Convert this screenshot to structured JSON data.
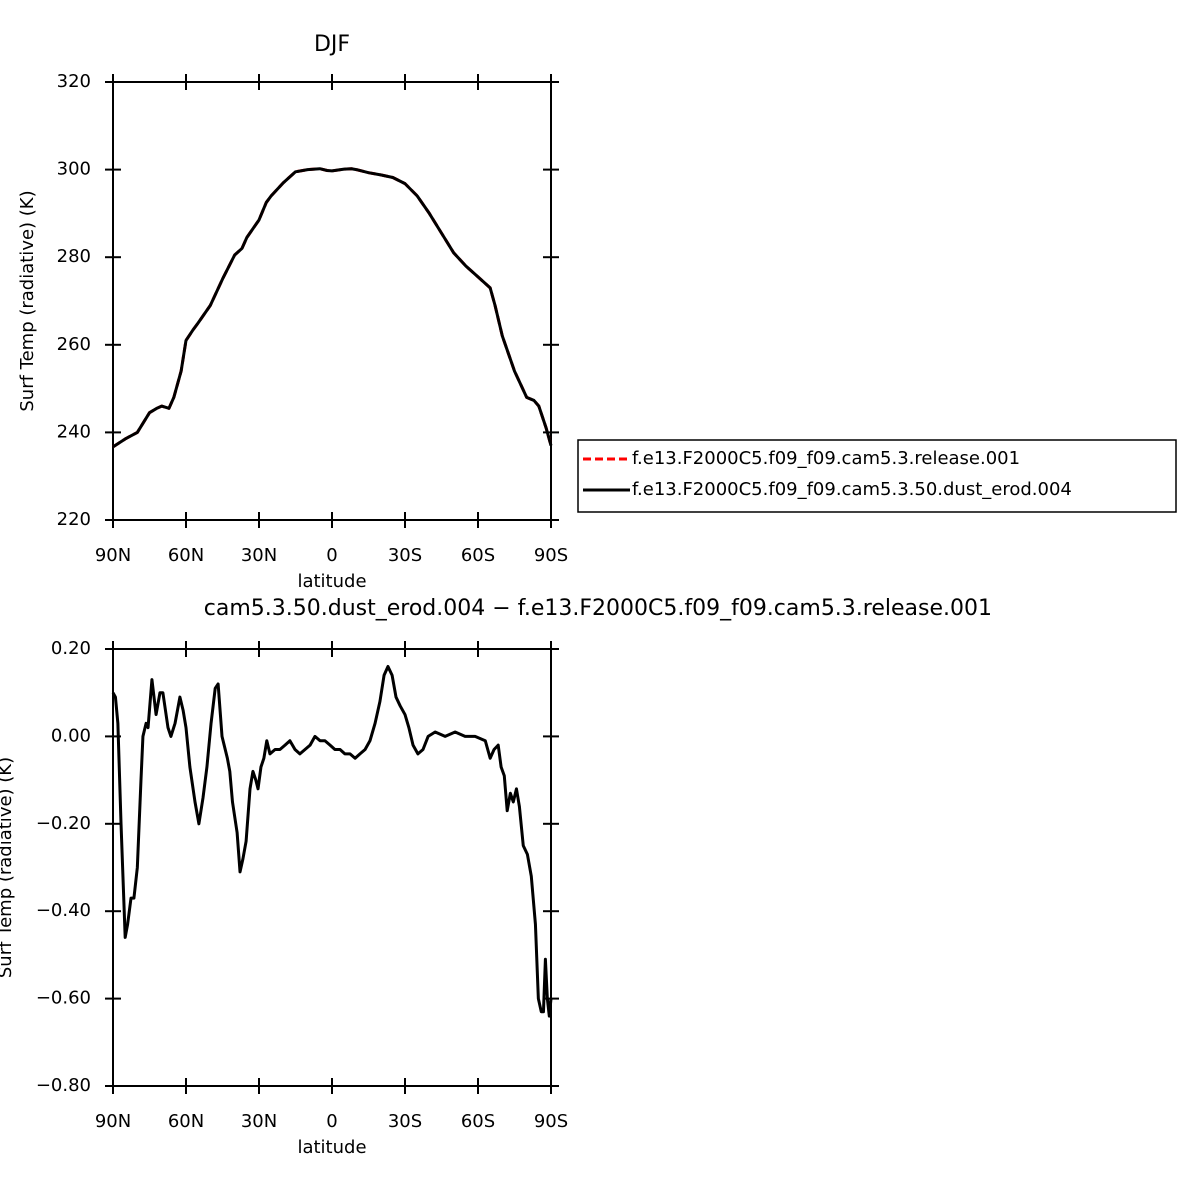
{
  "chart_data": [
    {
      "type": "line",
      "title": "DJF",
      "xlabel": "latitude",
      "ylabel": "Surf Temp (radiative) (K)",
      "x": [
        90,
        85,
        80,
        75,
        72,
        70,
        67,
        65,
        62,
        60,
        57,
        55,
        50,
        45,
        40,
        37,
        35,
        30,
        27,
        25,
        20,
        15,
        10,
        5,
        2,
        0,
        -5,
        -8,
        -10,
        -15,
        -20,
        -25,
        -30,
        -35,
        -40,
        -45,
        -50,
        -55,
        -60,
        -65,
        -67,
        -70,
        -75,
        -80,
        -83,
        -85,
        -88,
        -90
      ],
      "series": [
        {
          "name": "f.e13.F2000C5.f09_f09.cam5.3.release.001",
          "color": "#ff0000",
          "line_style": "dashed",
          "values": [
            236.7,
            238.5,
            240,
            244.5,
            245.5,
            246,
            245.5,
            248,
            254,
            261,
            263.5,
            265,
            269,
            275,
            280.5,
            282,
            284.5,
            288.5,
            292.5,
            294,
            297,
            299.5,
            300,
            300.2,
            299.8,
            299.7,
            300.1,
            300.2,
            300,
            299.3,
            298.8,
            298.2,
            296.8,
            294,
            290,
            285.5,
            281,
            278,
            275.5,
            273,
            269,
            262,
            254,
            248,
            247.3,
            246,
            241,
            237
          ]
        },
        {
          "name": "f.e13.F2000C5.f09_f09.cam5.3.50.dust_erod.004",
          "color": "#000000",
          "line_style": "solid",
          "values": [
            236.7,
            238.5,
            240,
            244.5,
            245.5,
            246,
            245.5,
            248,
            254,
            261,
            263.5,
            265,
            269,
            275,
            280.5,
            282,
            284.5,
            288.5,
            292.5,
            294,
            297,
            299.5,
            300,
            300.2,
            299.8,
            299.7,
            300.1,
            300.2,
            300,
            299.3,
            298.8,
            298.2,
            296.8,
            294,
            290,
            285.5,
            281,
            278,
            275.5,
            273,
            269,
            262,
            254,
            248,
            247.3,
            246,
            241,
            237
          ]
        }
      ],
      "xlim": [
        90,
        -90
      ],
      "xticks": [
        {
          "value": 90,
          "label": "90N"
        },
        {
          "value": 60,
          "label": "60N"
        },
        {
          "value": 30,
          "label": "30N"
        },
        0,
        {
          "value": -30,
          "label": "30S"
        },
        {
          "value": -60,
          "label": "60S"
        },
        {
          "value": -90,
          "label": "90S"
        }
      ],
      "ylim": [
        220,
        320
      ],
      "yticks": [
        220,
        240,
        260,
        280,
        300,
        320
      ],
      "legend": "right"
    },
    {
      "type": "line",
      "title": "cam5.3.50.dust_erod.004 − f.e13.F2000C5.f09_f09.cam5.3.release.001",
      "xlabel": "latitude",
      "ylabel": "Surf Temp (radiative) (K)",
      "x": [
        90,
        89,
        88,
        86.7,
        85,
        84,
        82.6,
        81.4,
        80,
        78.5,
        77.7,
        76.4,
        75.6,
        74,
        72.3,
        70.7,
        69.5,
        67.4,
        66.2,
        64.5,
        62.5,
        61.2,
        60,
        58.4,
        56.3,
        54.7,
        53,
        51.4,
        49.7,
        48,
        46.8,
        45.2,
        43,
        42,
        40.9,
        39,
        37.8,
        36.6,
        35.3,
        33.7,
        32.5,
        31.3,
        30.4,
        29.2,
        28,
        26.8,
        25.5,
        23.4,
        21.4,
        19.3,
        17.3,
        15.2,
        13.2,
        11.1,
        9,
        7,
        4.9,
        2.9,
        0.8,
        -1.2,
        -3.3,
        -5.3,
        -7.4,
        -9.5,
        -11.5,
        -13.6,
        -15.6,
        -17.7,
        -19.7,
        -21.4,
        -23,
        -24.7,
        -26.3,
        -28,
        -30,
        -31.6,
        -33.3,
        -35.3,
        -37.4,
        -39.5,
        -42.4,
        -46.5,
        -50.6,
        -54.7,
        -58.8,
        -63,
        -65,
        -66.6,
        -68.3,
        -69.5,
        -70.8,
        -72,
        -73.3,
        -74.5,
        -75.8,
        -77,
        -78.6,
        -80.3,
        -81.9,
        -83.6,
        -84.8,
        -86,
        -86.9,
        -87.7,
        -88.5,
        -89.3,
        -90
      ],
      "series": [
        {
          "color": "#000000",
          "line_style": "solid",
          "values": [
            0.1,
            0.09,
            0.03,
            -0.2,
            -0.46,
            -0.43,
            -0.37,
            -0.37,
            -0.3,
            -0.1,
            0.0,
            0.03,
            0.02,
            0.13,
            0.05,
            0.1,
            0.1,
            0.02,
            0.0,
            0.03,
            0.09,
            0.06,
            0.02,
            -0.07,
            -0.15,
            -0.2,
            -0.14,
            -0.07,
            0.03,
            0.11,
            0.12,
            0.0,
            -0.05,
            -0.08,
            -0.15,
            -0.22,
            -0.31,
            -0.28,
            -0.24,
            -0.12,
            -0.08,
            -0.1,
            -0.12,
            -0.07,
            -0.05,
            -0.01,
            -0.04,
            -0.03,
            -0.03,
            -0.02,
            -0.01,
            -0.03,
            -0.04,
            -0.03,
            -0.02,
            0.0,
            -0.01,
            -0.01,
            -0.02,
            -0.03,
            -0.03,
            -0.04,
            -0.04,
            -0.05,
            -0.04,
            -0.03,
            -0.01,
            0.03,
            0.08,
            0.14,
            0.16,
            0.14,
            0.09,
            0.07,
            0.05,
            0.02,
            -0.02,
            -0.04,
            -0.03,
            0.0,
            0.01,
            0.0,
            0.01,
            0.0,
            0.0,
            -0.01,
            -0.05,
            -0.03,
            -0.02,
            -0.07,
            -0.09,
            -0.17,
            -0.13,
            -0.15,
            -0.12,
            -0.16,
            -0.25,
            -0.27,
            -0.32,
            -0.43,
            -0.6,
            -0.63,
            -0.63,
            -0.51,
            -0.6,
            -0.64,
            -0.6
          ]
        }
      ],
      "xlim": [
        90,
        -90
      ],
      "xticks": [
        {
          "value": 90,
          "label": "90N"
        },
        {
          "value": 60,
          "label": "60N"
        },
        {
          "value": 30,
          "label": "30N"
        },
        0,
        {
          "value": -30,
          "label": "30S"
        },
        {
          "value": -60,
          "label": "60S"
        },
        {
          "value": -90,
          "label": "90S"
        }
      ],
      "ylim": [
        -0.8,
        0.2
      ],
      "yticks": [
        {
          "value": -0.8,
          "label": "−0.80"
        },
        {
          "value": -0.6,
          "label": "−0.60"
        },
        {
          "value": -0.4,
          "label": "−0.40"
        },
        {
          "value": -0.2,
          "label": "−0.20"
        },
        {
          "value": 0,
          "label": "0.00"
        },
        {
          "value": 0.2,
          "label": "0.20"
        }
      ]
    }
  ]
}
